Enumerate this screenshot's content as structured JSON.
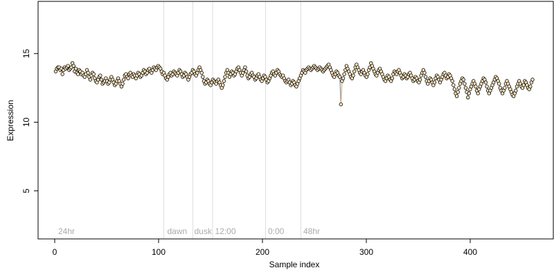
{
  "chart_data": {
    "type": "scatter",
    "title": "",
    "xlabel": "Sample index",
    "ylabel": "Expression",
    "xlim": [
      -16,
      480
    ],
    "ylim": [
      1.5,
      18.8
    ],
    "x_ticks": [
      0,
      100,
      200,
      300,
      400
    ],
    "y_ticks": [
      5,
      10,
      15
    ],
    "grid": false,
    "legend": "none",
    "colors": {
      "segment_blue": "#5a8fd0",
      "segment_orange": "#f0a040",
      "point_fill": "#ffe8bf",
      "vline": "#dddddd",
      "annotation_text": "#aaaaaa"
    },
    "vertical_markers": [
      {
        "x": 105,
        "label": ""
      },
      {
        "x": 133,
        "label": ""
      },
      {
        "x": 152,
        "label": ""
      },
      {
        "x": 203,
        "label": ""
      },
      {
        "x": 237,
        "label": ""
      }
    ],
    "annotations": [
      {
        "x": 2,
        "label": "24hr"
      },
      {
        "x": 107,
        "label": "dawn"
      },
      {
        "x": 133,
        "label": "dusk"
      },
      {
        "x": 153,
        "label": "12:00"
      },
      {
        "x": 204,
        "label": "0:00"
      },
      {
        "x": 238,
        "label": "48hr"
      }
    ],
    "series": [
      {
        "x_start": 1,
        "x_end": 460,
        "values": [
          13.7,
          13.9,
          14.0,
          14.0,
          13.8,
          13.9,
          13.5,
          13.8,
          14.0,
          13.9,
          14.0,
          14.1,
          13.8,
          13.9,
          14.0,
          14.3,
          14.1,
          13.7,
          13.9,
          13.6,
          13.5,
          13.8,
          13.7,
          13.5,
          13.6,
          13.4,
          13.3,
          13.5,
          13.8,
          13.6,
          13.3,
          13.1,
          13.4,
          13.6,
          13.5,
          13.2,
          13.0,
          12.9,
          13.1,
          13.3,
          13.4,
          13.1,
          12.8,
          12.9,
          13.0,
          13.2,
          13.0,
          12.8,
          12.9,
          13.1,
          13.3,
          13.1,
          12.9,
          12.7,
          12.8,
          13.0,
          13.2,
          13.0,
          12.8,
          12.6,
          12.8,
          13.1,
          13.4,
          13.5,
          13.3,
          13.2,
          13.5,
          13.6,
          13.4,
          13.3,
          13.5,
          13.4,
          13.2,
          13.4,
          13.6,
          13.5,
          13.3,
          13.4,
          13.6,
          13.8,
          13.7,
          13.5,
          13.6,
          13.8,
          13.9,
          13.7,
          13.6,
          13.8,
          14.0,
          13.9,
          13.8,
          14.0,
          14.1,
          14.0,
          13.9,
          13.7,
          13.5,
          13.6,
          13.4,
          13.2,
          13.1,
          13.3,
          13.5,
          13.6,
          13.4,
          13.5,
          13.7,
          13.6,
          13.5,
          13.4,
          13.6,
          13.8,
          13.7,
          13.5,
          13.3,
          13.4,
          13.6,
          13.5,
          13.3,
          13.1,
          13.3,
          13.5,
          13.6,
          13.8,
          13.7,
          13.5,
          13.4,
          13.6,
          13.8,
          14.0,
          13.8,
          13.6,
          13.3,
          13.0,
          12.8,
          12.9,
          13.1,
          13.0,
          12.8,
          12.7,
          12.9,
          13.1,
          13.0,
          12.9,
          12.8,
          13.0,
          13.1,
          12.9,
          12.7,
          12.5,
          12.7,
          13.0,
          13.3,
          13.6,
          13.8,
          13.6,
          13.3,
          13.5,
          13.7,
          13.6,
          13.4,
          13.5,
          13.7,
          13.9,
          14.0,
          13.8,
          13.6,
          13.4,
          13.6,
          13.8,
          14.0,
          13.7,
          13.4,
          13.2,
          13.3,
          13.5,
          13.6,
          13.4,
          13.3,
          13.1,
          13.2,
          13.4,
          13.5,
          13.3,
          13.1,
          13.0,
          13.2,
          13.4,
          13.3,
          13.1,
          12.9,
          13.0,
          13.2,
          13.4,
          13.6,
          13.7,
          13.5,
          13.4,
          13.6,
          13.8,
          13.7,
          13.5,
          13.4,
          13.3,
          13.4,
          13.2,
          13.0,
          12.9,
          13.0,
          13.1,
          12.9,
          12.7,
          12.8,
          13.0,
          12.9,
          12.7,
          12.6,
          12.8,
          13.0,
          13.2,
          13.4,
          13.6,
          13.8,
          13.7,
          13.6,
          13.8,
          13.9,
          14.0,
          13.9,
          13.8,
          13.9,
          14.0,
          14.1,
          14.0,
          13.9,
          13.8,
          13.9,
          14.0,
          13.9,
          13.8,
          13.7,
          13.8,
          13.9,
          14.0,
          14.1,
          14.2,
          14.0,
          13.8,
          13.6,
          13.4,
          13.3,
          13.5,
          13.7,
          13.6,
          13.4,
          13.3,
          11.3,
          13.0,
          13.2,
          13.5,
          13.8,
          14.1,
          13.9,
          13.7,
          13.5,
          13.3,
          13.2,
          13.4,
          13.7,
          14.0,
          14.2,
          14.0,
          13.8,
          13.6,
          13.5,
          13.7,
          13.8,
          13.6,
          13.4,
          13.3,
          13.5,
          13.8,
          14.0,
          14.3,
          14.1,
          13.9,
          13.7,
          13.5,
          13.4,
          13.6,
          13.8,
          13.9,
          13.7,
          13.5,
          13.3,
          13.1,
          13.0,
          13.2,
          13.4,
          13.3,
          13.1,
          13.0,
          13.2,
          13.5,
          13.7,
          13.6,
          13.5,
          13.7,
          13.8,
          13.6,
          13.4,
          13.2,
          13.3,
          13.5,
          13.4,
          13.2,
          13.3,
          13.5,
          13.6,
          13.4,
          13.2,
          13.0,
          13.1,
          13.3,
          13.2,
          13.0,
          12.9,
          13.1,
          13.4,
          13.6,
          13.8,
          13.6,
          13.3,
          13.0,
          12.8,
          13.0,
          13.2,
          13.1,
          12.9,
          12.7,
          12.9,
          13.2,
          13.4,
          13.3,
          13.1,
          12.9,
          13.1,
          13.3,
          13.5,
          13.6,
          13.4,
          13.2,
          13.3,
          13.5,
          13.4,
          13.2,
          13.0,
          12.7,
          12.4,
          12.1,
          11.9,
          12.2,
          12.5,
          12.8,
          13.0,
          13.2,
          13.1,
          12.8,
          12.5,
          12.2,
          11.8,
          12.1,
          12.4,
          12.6,
          12.8,
          13.0,
          12.8,
          12.6,
          12.3,
          12.1,
          12.4,
          12.6,
          12.8,
          13.0,
          13.2,
          13.1,
          12.9,
          12.6,
          12.3,
          12.1,
          12.3,
          12.5,
          12.7,
          12.9,
          13.1,
          13.3,
          13.2,
          13.0,
          12.8,
          12.5,
          12.3,
          12.1,
          12.3,
          12.5,
          12.8,
          13.0,
          12.8,
          12.6,
          12.4,
          12.2,
          12.0,
          11.9,
          12.1,
          12.3,
          12.6,
          12.8,
          13.0,
          12.8,
          12.6,
          12.5,
          12.7,
          13.0,
          12.9,
          12.7,
          12.5,
          12.4,
          12.6,
          12.9,
          13.1
        ]
      }
    ]
  }
}
